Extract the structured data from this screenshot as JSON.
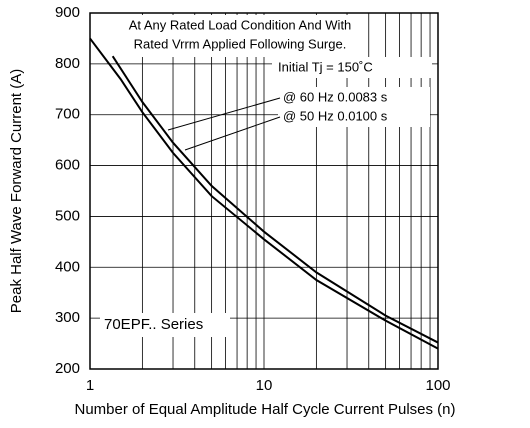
{
  "chart_data": {
    "type": "line",
    "xlabel": "Number of Equal Amplitude Half Cycle Current Pulses (n)",
    "ylabel": "Peak Half Wave Forward Current (A)",
    "log_x": true,
    "grid": true,
    "xlim": [
      1,
      100
    ],
    "ylim": [
      200,
      900
    ],
    "xticks": [
      1,
      10,
      100
    ],
    "x_minor_ticks": [
      2,
      3,
      4,
      5,
      6,
      7,
      8,
      9,
      20,
      30,
      40,
      50,
      60,
      70,
      80,
      90
    ],
    "yticks": [
      200,
      300,
      400,
      500,
      600,
      700,
      800,
      900
    ],
    "annotations": [
      "At Any Rated Load Condition And With",
      "Rated Vrrm Applied Following Surge.",
      "Initial Tj = 150˚C",
      "70EPF.. Series"
    ],
    "series": [
      {
        "name": "@ 60 Hz 0.0083 s",
        "color": "#000000",
        "x": [
          1.35,
          2,
          3,
          5,
          10,
          20,
          50,
          100
        ],
        "values": [
          815,
          725,
          645,
          560,
          470,
          390,
          305,
          252
        ]
      },
      {
        "name": "@ 50 Hz 0.0100 s",
        "color": "#000000",
        "x": [
          1,
          1.5,
          2,
          3,
          5,
          10,
          20,
          50,
          100
        ],
        "values": [
          850,
          770,
          705,
          625,
          540,
          455,
          375,
          295,
          240
        ]
      }
    ]
  }
}
